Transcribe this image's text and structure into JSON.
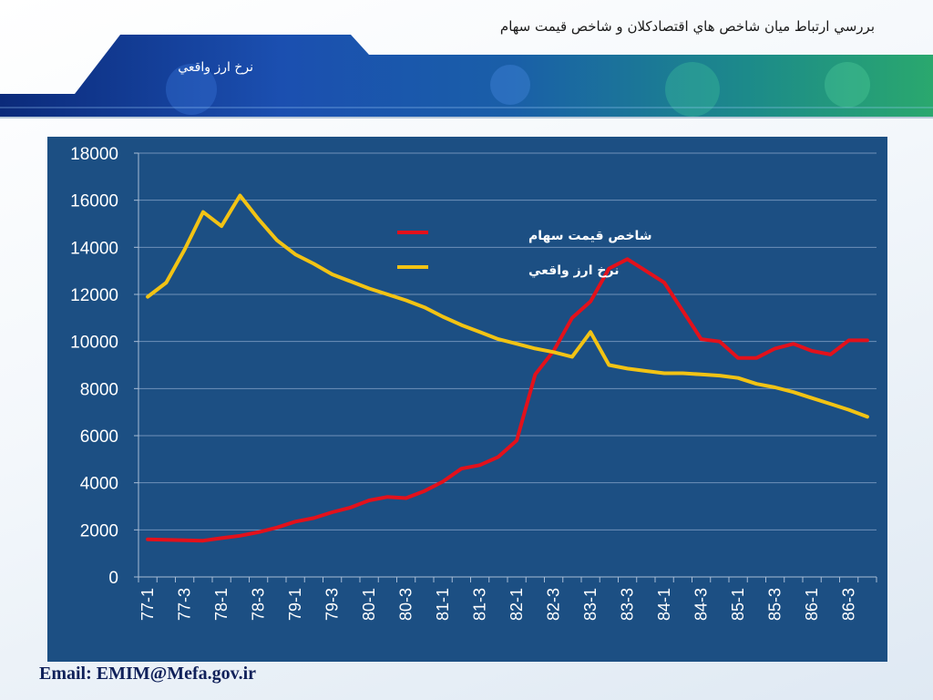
{
  "header": {
    "title": "بررسي ارتباط ميان شاخص هاي اقتصادكلان و شاخص قيمت سهام",
    "subtitle": "نرخ ارز واقعي"
  },
  "footer": {
    "email": "Email: EMIM@Mefa.gov.ir"
  },
  "colors": {
    "panel": "#1c4f83",
    "stock": "#e3111b",
    "fx": "#f2c314"
  },
  "chart_data": {
    "type": "line",
    "title": "",
    "xlabel": "",
    "ylabel": "",
    "ylim": [
      0,
      18000
    ],
    "yticks": [
      0,
      2000,
      4000,
      6000,
      8000,
      10000,
      12000,
      14000,
      16000,
      18000
    ],
    "grid": true,
    "legend_position": "top-center",
    "x": [
      "77-1",
      "77-2",
      "77-3",
      "77-4",
      "78-1",
      "78-2",
      "78-3",
      "78-4",
      "79-1",
      "79-2",
      "79-3",
      "79-4",
      "80-1",
      "80-2",
      "80-3",
      "80-4",
      "81-1",
      "81-2",
      "81-3",
      "81-4",
      "82-1",
      "82-2",
      "82-3",
      "82-4",
      "83-1",
      "83-2",
      "83-3",
      "83-4",
      "84-1",
      "84-2",
      "84-3",
      "84-4",
      "85-1",
      "85-2",
      "85-3",
      "85-4",
      "86-1",
      "86-2",
      "86-3",
      "86-4"
    ],
    "x_tick_labels": [
      "77-1",
      "77-3",
      "78-1",
      "78-3",
      "79-1",
      "79-3",
      "80-1",
      "80-3",
      "81-1",
      "81-3",
      "82-1",
      "82-3",
      "83-1",
      "83-3",
      "84-1",
      "84-3",
      "85-1",
      "85-3",
      "86-1",
      "86-3"
    ],
    "series": [
      {
        "name": "شاخص قيمت سهام",
        "color": "#e3111b",
        "values": [
          1600,
          1580,
          1560,
          1540,
          1650,
          1750,
          1900,
          2100,
          2350,
          2500,
          2750,
          2950,
          3250,
          3400,
          3350,
          3650,
          4050,
          4600,
          4750,
          5100,
          5800,
          8600,
          9600,
          11000,
          11700,
          13100,
          13500,
          13000,
          12500,
          11300,
          10100,
          10000,
          9300,
          9300,
          9700,
          9900,
          9600,
          9450,
          10050,
          10050
        ]
      },
      {
        "name": "نرخ ارز واقعي",
        "color": "#f2c314",
        "values": [
          11900,
          12500,
          13900,
          15500,
          14900,
          16200,
          15200,
          14300,
          13700,
          13300,
          12850,
          12550,
          12250,
          12000,
          11750,
          11450,
          11050,
          10700,
          10400,
          10100,
          9900,
          9700,
          9550,
          9350,
          10400,
          9000,
          8850,
          8750,
          8650,
          8650,
          8600,
          8550,
          8450,
          8200,
          8050,
          7850,
          7600,
          7350,
          7100,
          6800
        ]
      }
    ]
  }
}
